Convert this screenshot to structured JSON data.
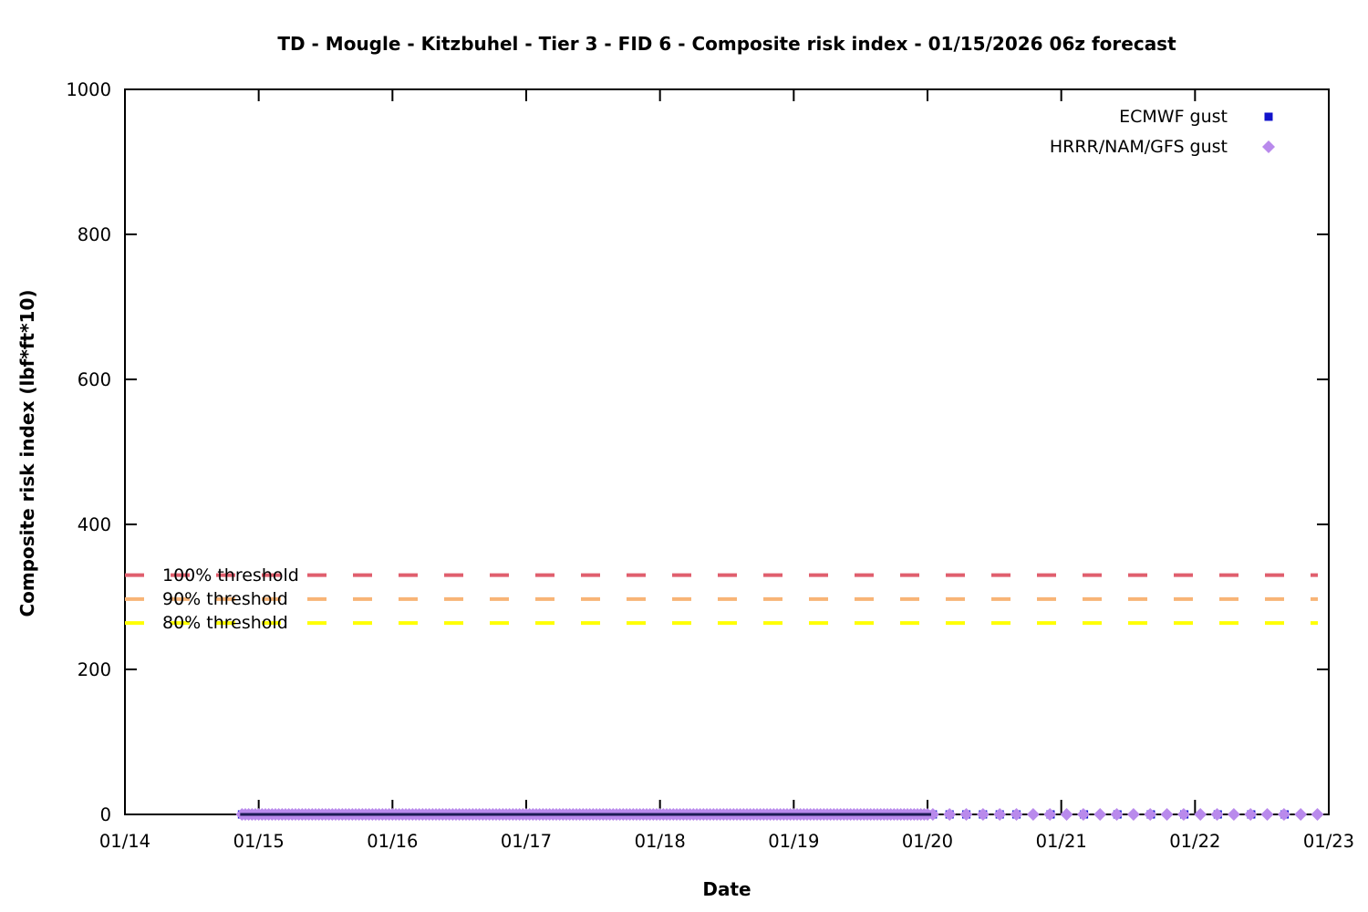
{
  "title": "TD - Mougle - Kitzbuhel - Tier 3 - FID 6 - Composite risk index - 01/15/2026 06z forecast",
  "axes": {
    "x": {
      "label": "Date",
      "ticks": [
        "01/14",
        "01/15",
        "01/16",
        "01/17",
        "01/18",
        "01/19",
        "01/20",
        "01/21",
        "01/22",
        "01/23"
      ]
    },
    "y": {
      "label": "Composite risk index (lbf*ft*10)",
      "ticks": [
        "0",
        "200",
        "400",
        "600",
        "800",
        "1000"
      ],
      "min": 0,
      "max": 1000
    }
  },
  "legend": [
    {
      "label": "ECMWF gust",
      "marker": "square",
      "color": "#1113cb"
    },
    {
      "label": "HRRR/NAM/GFS gust",
      "marker": "diamond",
      "color": "#b98aec"
    }
  ],
  "chart_data": {
    "type": "scatter",
    "title": "TD - Mougle - Kitzbuhel - Tier 3 - FID 6 - Composite risk index - 01/15/2026 06z forecast",
    "xlabel": "Date",
    "ylabel": "Composite risk index (lbf*ft*10)",
    "xlim": [
      "01/14",
      "01/23"
    ],
    "ylim": [
      0,
      1000
    ],
    "x_axis_days_span": 9,
    "grid": false,
    "legend_position": "top-right-inside",
    "series": [
      {
        "name": "ECMWF gust",
        "marker": "square",
        "color": "#1113cb",
        "constant_value": 0,
        "segments": [
          {
            "start_day": 0.875,
            "end_day": 6.0,
            "step_days": 0.05,
            "note": "dense band 01/14 21z - 01/20"
          },
          {
            "start_day": 6.04,
            "end_day": 6.67,
            "step_days": 0.125,
            "note": "3-hourly early 01/20"
          },
          {
            "start_day": 6.92,
            "end_day": 8.67,
            "step_days": 0.25,
            "note": "6-hourly 01/20 - 01/23"
          }
        ]
      },
      {
        "name": "HRRR/NAM/GFS gust",
        "marker": "diamond",
        "color": "#b98aec",
        "constant_value": 0,
        "segments": [
          {
            "start_day": 0.875,
            "end_day": 6.0,
            "step_days": 0.025,
            "note": "dense band 01/14 21z - 01/20"
          },
          {
            "start_day": 6.04,
            "end_day": 8.92,
            "step_days": 0.125,
            "note": "3-hourly 01/20 - 01/23"
          }
        ]
      }
    ],
    "thresholds": [
      {
        "label": "100% threshold",
        "value": 330,
        "color": "#e05f6e"
      },
      {
        "label": "90% threshold",
        "value": 297,
        "color": "#f8b476"
      },
      {
        "label": "80% threshold",
        "value": 264,
        "color": "#ffff00"
      }
    ]
  }
}
